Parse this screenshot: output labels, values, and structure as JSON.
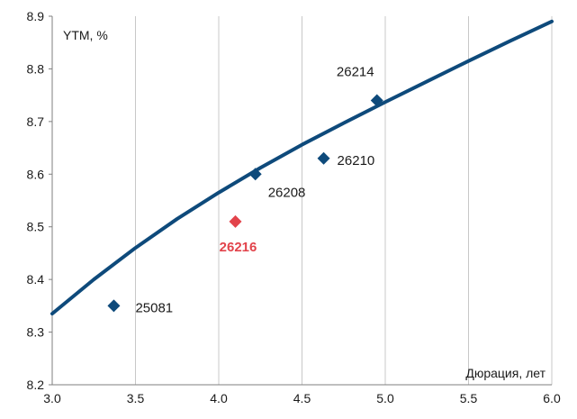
{
  "chart_data": {
    "type": "scatter",
    "x": {
      "label": "Дюрация, лет",
      "min": 3.0,
      "max": 6.0,
      "ticks": [
        "3.0",
        "3.5",
        "4.0",
        "4.5",
        "5.0",
        "5.5",
        "6.0"
      ]
    },
    "y": {
      "label": "YTM, %",
      "min": 8.2,
      "max": 8.9,
      "ticks": [
        "8.2",
        "8.3",
        "8.4",
        "8.5",
        "8.6",
        "8.7",
        "8.8",
        "8.9"
      ]
    },
    "grid": {
      "vertical": true,
      "horizontal": false
    },
    "points": [
      {
        "label": "25081",
        "x": 3.37,
        "y": 8.35,
        "color": "#0E4A7B",
        "highlight": false
      },
      {
        "label": "26208",
        "x": 4.22,
        "y": 8.6,
        "color": "#0E4A7B",
        "highlight": false
      },
      {
        "label": "26210",
        "x": 4.63,
        "y": 8.63,
        "color": "#0E4A7B",
        "highlight": false
      },
      {
        "label": "26214",
        "x": 4.95,
        "y": 8.74,
        "color": "#0E4A7B",
        "highlight": false
      },
      {
        "label": "26216",
        "x": 4.1,
        "y": 8.51,
        "color": "#E2434B",
        "highlight": true
      }
    ],
    "curve": {
      "type": "trend",
      "color": "#0E4A7B",
      "x": [
        3.0,
        3.25,
        3.5,
        3.75,
        4.0,
        4.25,
        4.5,
        4.75,
        5.0,
        5.25,
        5.5,
        5.75,
        6.0
      ],
      "y": [
        8.335,
        8.4,
        8.46,
        8.515,
        8.565,
        8.612,
        8.656,
        8.697,
        8.737,
        8.776,
        8.815,
        8.853,
        8.89
      ]
    },
    "colors": {
      "series": "#0E4A7B",
      "highlight": "#E2434B",
      "axis": "#7f7f7f",
      "grid": "#c8c8c8"
    }
  }
}
